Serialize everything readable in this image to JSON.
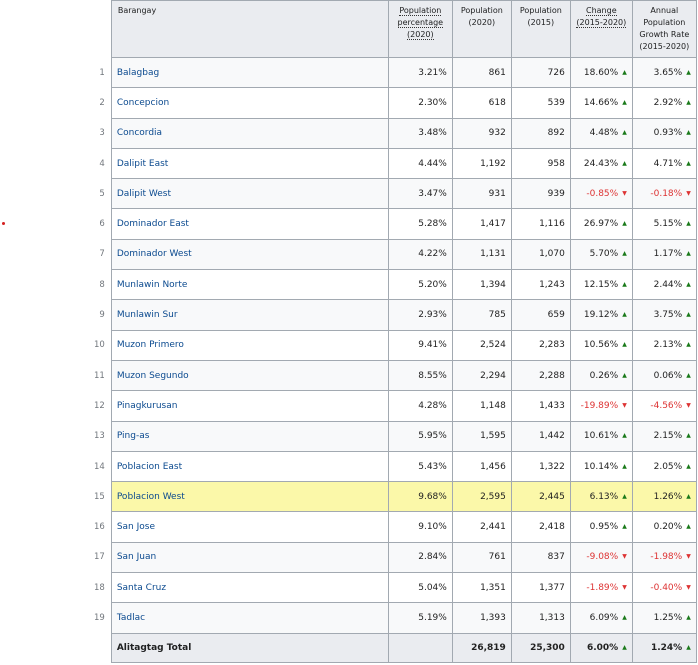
{
  "headers": {
    "barangay": "Barangay",
    "pct": "Population percentage (2020)",
    "pop2020": "Population (2020)",
    "pop2015": "Population (2015)",
    "change": "Change (2015‑2020)",
    "growth": "Annual Population Growth Rate (2015‑2020)"
  },
  "rows": [
    {
      "n": "1",
      "name": "Balagbag",
      "pct": "3.21%",
      "p20": "861",
      "p15": "726",
      "chg": "18.60%",
      "gr": "3.65%",
      "chgDir": "up",
      "grDir": "up"
    },
    {
      "n": "2",
      "name": "Concepcion",
      "pct": "2.30%",
      "p20": "618",
      "p15": "539",
      "chg": "14.66%",
      "gr": "2.92%",
      "chgDir": "up",
      "grDir": "up"
    },
    {
      "n": "3",
      "name": "Concordia",
      "pct": "3.48%",
      "p20": "932",
      "p15": "892",
      "chg": "4.48%",
      "gr": "0.93%",
      "chgDir": "up",
      "grDir": "up"
    },
    {
      "n": "4",
      "name": "Dalipit East",
      "pct": "4.44%",
      "p20": "1,192",
      "p15": "958",
      "chg": "24.43%",
      "gr": "4.71%",
      "chgDir": "up",
      "grDir": "up"
    },
    {
      "n": "5",
      "name": "Dalipit West",
      "pct": "3.47%",
      "p20": "931",
      "p15": "939",
      "chg": "-0.85%",
      "gr": "-0.18%",
      "chgDir": "down",
      "grDir": "down"
    },
    {
      "n": "6",
      "name": "Dominador East",
      "pct": "5.28%",
      "p20": "1,417",
      "p15": "1,116",
      "chg": "26.97%",
      "gr": "5.15%",
      "chgDir": "up",
      "grDir": "up"
    },
    {
      "n": "7",
      "name": "Dominador West",
      "pct": "4.22%",
      "p20": "1,131",
      "p15": "1,070",
      "chg": "5.70%",
      "gr": "1.17%",
      "chgDir": "up",
      "grDir": "up"
    },
    {
      "n": "8",
      "name": "Munlawin Norte",
      "pct": "5.20%",
      "p20": "1,394",
      "p15": "1,243",
      "chg": "12.15%",
      "gr": "2.44%",
      "chgDir": "up",
      "grDir": "up"
    },
    {
      "n": "9",
      "name": "Munlawin Sur",
      "pct": "2.93%",
      "p20": "785",
      "p15": "659",
      "chg": "19.12%",
      "gr": "3.75%",
      "chgDir": "up",
      "grDir": "up"
    },
    {
      "n": "10",
      "name": "Muzon Primero",
      "pct": "9.41%",
      "p20": "2,524",
      "p15": "2,283",
      "chg": "10.56%",
      "gr": "2.13%",
      "chgDir": "up",
      "grDir": "up"
    },
    {
      "n": "11",
      "name": "Muzon Segundo",
      "pct": "8.55%",
      "p20": "2,294",
      "p15": "2,288",
      "chg": "0.26%",
      "gr": "0.06%",
      "chgDir": "up",
      "grDir": "up"
    },
    {
      "n": "12",
      "name": "Pinagkurusan",
      "pct": "4.28%",
      "p20": "1,148",
      "p15": "1,433",
      "chg": "-19.89%",
      "gr": "-4.56%",
      "chgDir": "down",
      "grDir": "down"
    },
    {
      "n": "13",
      "name": "Ping-as",
      "pct": "5.95%",
      "p20": "1,595",
      "p15": "1,442",
      "chg": "10.61%",
      "gr": "2.15%",
      "chgDir": "up",
      "grDir": "up"
    },
    {
      "n": "14",
      "name": "Poblacion East",
      "pct": "5.43%",
      "p20": "1,456",
      "p15": "1,322",
      "chg": "10.14%",
      "gr": "2.05%",
      "chgDir": "up",
      "grDir": "up"
    },
    {
      "n": "15",
      "name": "Poblacion West",
      "pct": "9.68%",
      "p20": "2,595",
      "p15": "2,445",
      "chg": "6.13%",
      "gr": "1.26%",
      "chgDir": "up",
      "grDir": "up",
      "highlight": true
    },
    {
      "n": "16",
      "name": "San Jose",
      "pct": "9.10%",
      "p20": "2,441",
      "p15": "2,418",
      "chg": "0.95%",
      "gr": "0.20%",
      "chgDir": "up",
      "grDir": "up"
    },
    {
      "n": "17",
      "name": "San Juan",
      "pct": "2.84%",
      "p20": "761",
      "p15": "837",
      "chg": "-9.08%",
      "gr": "-1.98%",
      "chgDir": "down",
      "grDir": "down"
    },
    {
      "n": "18",
      "name": "Santa Cruz",
      "pct": "5.04%",
      "p20": "1,351",
      "p15": "1,377",
      "chg": "-1.89%",
      "gr": "-0.40%",
      "chgDir": "down",
      "grDir": "down"
    },
    {
      "n": "19",
      "name": "Tadlac",
      "pct": "5.19%",
      "p20": "1,393",
      "p15": "1,313",
      "chg": "6.09%",
      "gr": "1.25%",
      "chgDir": "up",
      "grDir": "up"
    }
  ],
  "total": {
    "name": "Alitagtag Total",
    "p20": "26,819",
    "p15": "25,300",
    "chg": "6.00%",
    "gr": "1.24%"
  },
  "colors": {
    "up": "#1a7a1a",
    "down": "#d33",
    "highlight": "#fbf8a9",
    "header": "#eaecf0"
  }
}
